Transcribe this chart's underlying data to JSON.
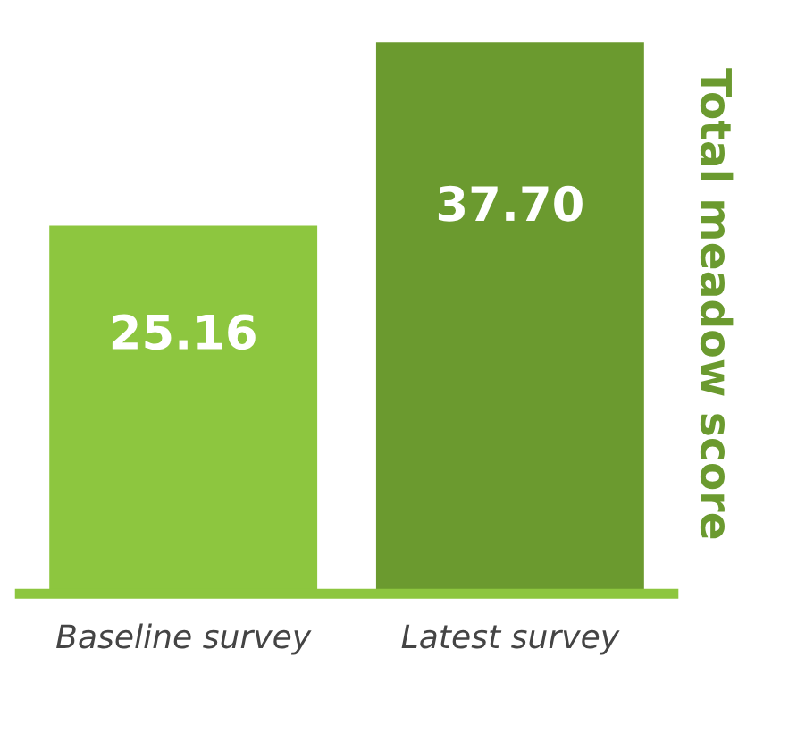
{
  "chart_data": {
    "type": "bar",
    "ylabel": "Total meadow score",
    "categories": [
      "Baseline survey",
      "Latest survey"
    ],
    "values": [
      25.16,
      37.7
    ],
    "colors": [
      "#8dc63f",
      "#6b9a2f"
    ],
    "value_labels": [
      "25.16",
      "37.70"
    ],
    "grid": false,
    "legend": false,
    "tick_labels": "x"
  }
}
